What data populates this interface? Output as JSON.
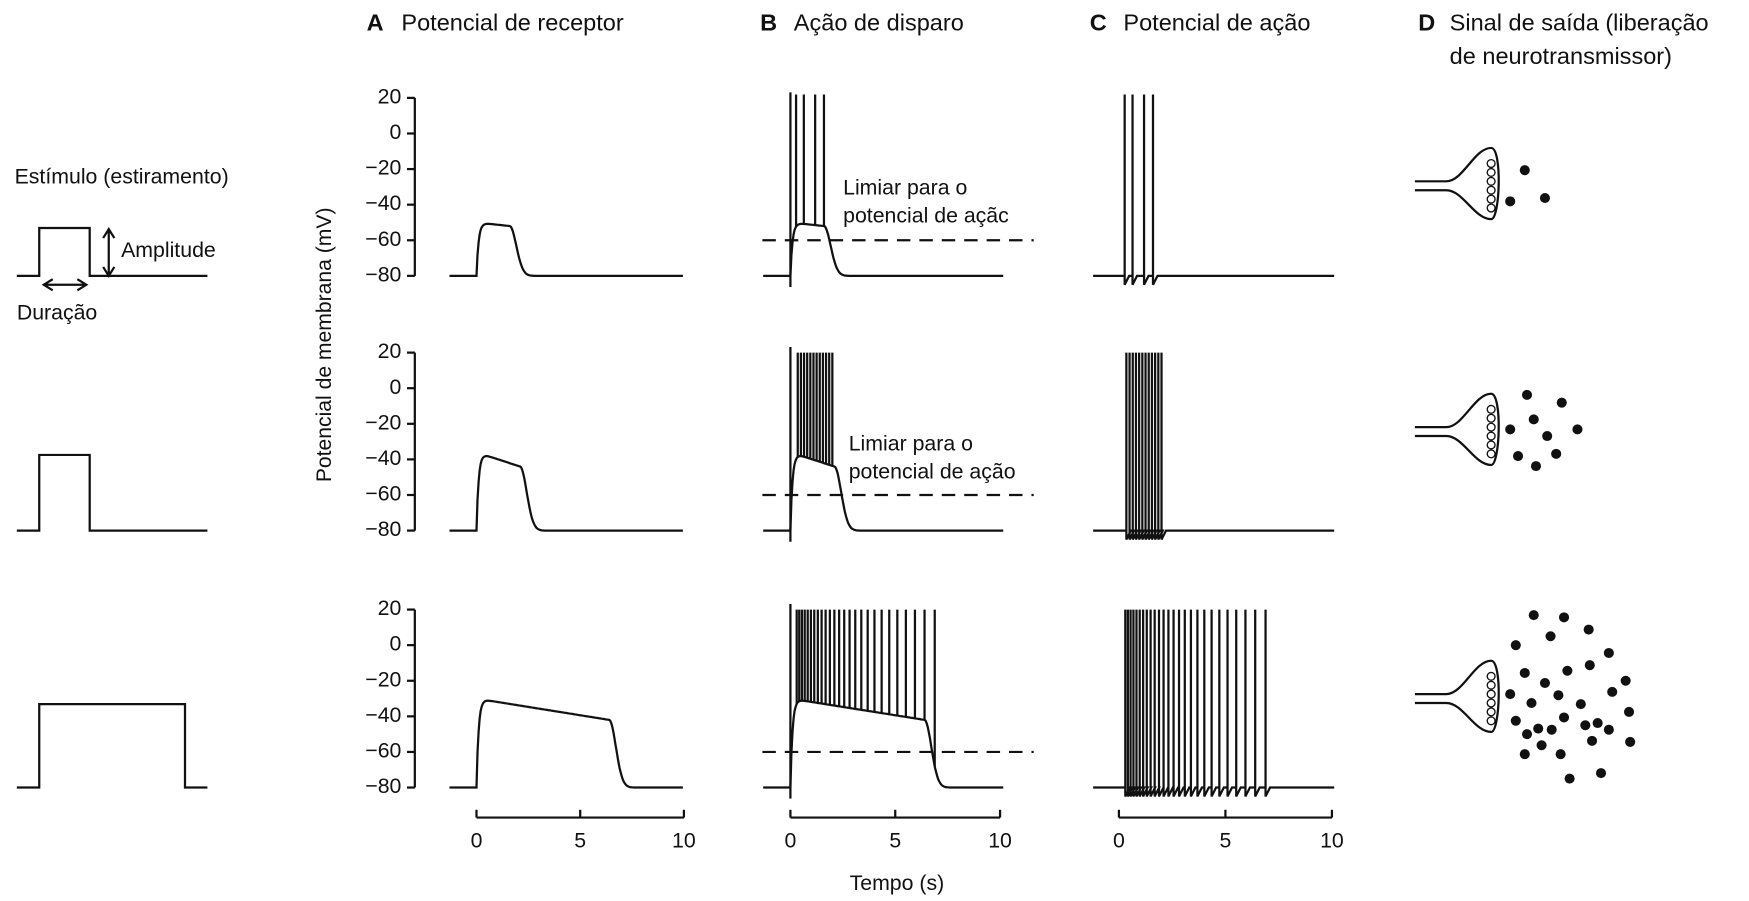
{
  "panels": [
    {
      "letter": "A",
      "title_lines": [
        "Potencial de receptor"
      ]
    },
    {
      "letter": "B",
      "title_lines": [
        "Ação de disparo"
      ]
    },
    {
      "letter": "C",
      "title_lines": [
        "Potencial de ação"
      ]
    },
    {
      "letter": "D",
      "title_lines": [
        "Sinal de saída (liberação",
        "de neurotransmissor)"
      ]
    }
  ],
  "stimulus": {
    "label": "Estímulo (estiramento)",
    "amplitude": "Amplitude",
    "duration": "Duração"
  },
  "y_axis": {
    "label": "Potencial de membrana (mV)",
    "ticks": [
      "20",
      "0",
      "−20",
      "−40",
      "−60",
      "−80"
    ]
  },
  "x_axis": {
    "label": "Tempo (s)",
    "ticks": [
      "0",
      "5",
      "10"
    ]
  },
  "threshold_labels": [
    [
      "Limiar para o",
      "potencial de açãc"
    ],
    [
      "Limiar para o",
      "potencial de ação"
    ]
  ]
}
